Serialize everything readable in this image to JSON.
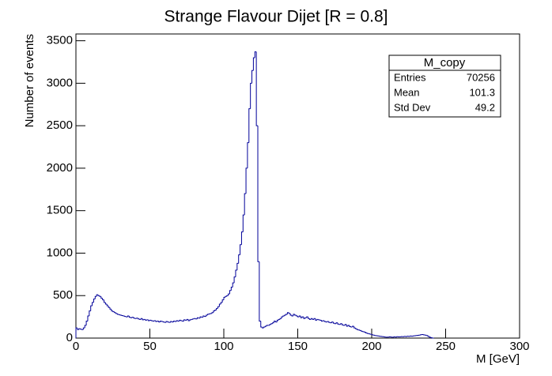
{
  "chart_data": {
    "type": "histogram",
    "title": "Strange Flavour Dijet [R = 0.8]",
    "x_label": "M [GeV]",
    "y_label": "Number of events",
    "color": "#000099",
    "xlim": [
      0,
      300
    ],
    "xticks": [
      0,
      50,
      100,
      150,
      200,
      250,
      300
    ],
    "ylim": [
      0,
      3580
    ],
    "yticks": [
      0,
      500,
      1000,
      1500,
      2000,
      2500,
      3000,
      3500
    ],
    "stats": {
      "title": "M_copy",
      "rows": [
        [
          "Entries",
          70256
        ],
        [
          "Mean",
          101.3
        ],
        [
          "Std Dev",
          49.2
        ]
      ]
    },
    "bins": [
      0,
      1,
      2,
      3,
      4,
      5,
      6,
      7,
      8,
      9,
      10,
      11,
      12,
      13,
      14,
      15,
      16,
      17,
      18,
      19,
      20,
      21,
      22,
      23,
      24,
      25,
      26,
      27,
      28,
      29,
      30,
      31,
      32,
      33,
      34,
      35,
      36,
      37,
      38,
      39,
      40,
      41,
      42,
      43,
      44,
      45,
      46,
      47,
      48,
      49,
      50,
      51,
      52,
      53,
      54,
      55,
      56,
      57,
      58,
      59,
      60,
      61,
      62,
      63,
      64,
      65,
      66,
      67,
      68,
      69,
      70,
      71,
      72,
      73,
      74,
      75,
      76,
      77,
      78,
      79,
      80,
      81,
      82,
      83,
      84,
      85,
      86,
      87,
      88,
      89,
      90,
      91,
      92,
      93,
      94,
      95,
      96,
      97,
      98,
      99,
      100,
      101,
      102,
      103,
      104,
      105,
      106,
      107,
      108,
      109,
      110,
      111,
      112,
      113,
      114,
      115,
      116,
      117,
      118,
      119,
      120,
      121,
      122,
      123,
      124,
      125,
      126,
      127,
      128,
      129,
      130,
      131,
      132,
      133,
      134,
      135,
      136,
      137,
      138,
      139,
      140,
      141,
      142,
      143,
      144,
      145,
      146,
      147,
      148,
      149,
      150,
      151,
      152,
      153,
      154,
      155,
      156,
      157,
      158,
      159,
      160,
      161,
      162,
      163,
      164,
      165,
      166,
      167,
      168,
      169,
      170,
      171,
      172,
      173,
      174,
      175,
      176,
      177,
      178,
      179,
      180,
      181,
      182,
      183,
      184,
      185,
      186,
      187,
      188,
      189,
      190,
      191,
      192,
      193,
      194,
      195,
      196,
      197,
      198,
      199,
      200,
      201,
      202,
      203,
      204,
      205,
      206,
      207,
      208,
      209,
      210,
      211,
      212,
      213,
      214,
      215,
      216,
      217,
      218,
      219,
      220,
      221,
      222,
      223,
      224,
      225,
      226,
      227,
      228,
      229,
      230,
      231,
      232,
      233,
      234,
      235,
      236,
      237,
      238,
      239,
      240,
      241,
      242
    ],
    "values": [
      120,
      100,
      110,
      105,
      100,
      120,
      150,
      200,
      260,
      320,
      380,
      420,
      460,
      490,
      510,
      500,
      490,
      470,
      450,
      420,
      400,
      380,
      360,
      340,
      320,
      310,
      300,
      290,
      280,
      275,
      270,
      265,
      260,
      255,
      250,
      260,
      245,
      240,
      245,
      235,
      230,
      235,
      225,
      220,
      230,
      215,
      220,
      210,
      215,
      205,
      210,
      205,
      200,
      205,
      195,
      200,
      190,
      200,
      195,
      190,
      185,
      195,
      190,
      185,
      195,
      190,
      200,
      195,
      205,
      200,
      210,
      205,
      200,
      215,
      210,
      220,
      205,
      215,
      220,
      225,
      230,
      225,
      240,
      235,
      250,
      245,
      260,
      255,
      270,
      280,
      285,
      290,
      300,
      320,
      330,
      350,
      370,
      400,
      420,
      450,
      480,
      490,
      500,
      520,
      560,
      600,
      650,
      720,
      800,
      880,
      980,
      1100,
      1250,
      1450,
      1700,
      2000,
      2300,
      2700,
      3000,
      3150,
      3300,
      3370,
      2500,
      900,
      200,
      130,
      120,
      130,
      140,
      150,
      150,
      160,
      170,
      180,
      200,
      190,
      210,
      220,
      230,
      250,
      260,
      270,
      280,
      300,
      290,
      270,
      260,
      280,
      270,
      260,
      250,
      260,
      240,
      250,
      230,
      240,
      250,
      230,
      220,
      230,
      220,
      230,
      210,
      220,
      215,
      210,
      200,
      205,
      195,
      190,
      195,
      185,
      180,
      190,
      175,
      170,
      180,
      165,
      160,
      170,
      155,
      150,
      160,
      140,
      150,
      135,
      130,
      140,
      120,
      110,
      100,
      95,
      90,
      80,
      75,
      70,
      60,
      55,
      50,
      45,
      40,
      35,
      30,
      28,
      25,
      22,
      20,
      18,
      15,
      12,
      10,
      12,
      15,
      12,
      10,
      14,
      12,
      16,
      14,
      15,
      18,
      16,
      20,
      18,
      22,
      20,
      24,
      22,
      25,
      28,
      30,
      32,
      35,
      40,
      42,
      38,
      35,
      30,
      20,
      10,
      5,
      0
    ]
  }
}
